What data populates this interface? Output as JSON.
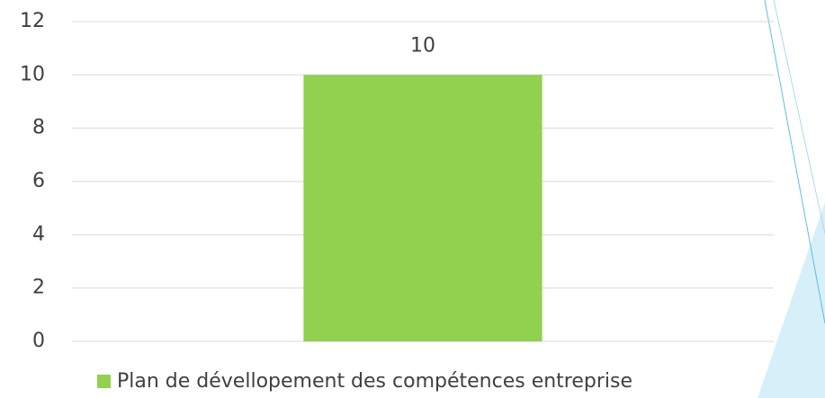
{
  "chart_data": {
    "type": "bar",
    "categories": [
      null
    ],
    "series": [
      {
        "name": "Plan de dévellopement des compétences entreprise",
        "color": "#92d050",
        "values": [
          10
        ]
      }
    ],
    "ylim": [
      0,
      12
    ],
    "yticks": [
      0,
      2,
      4,
      6,
      8,
      10,
      12
    ],
    "grid": true,
    "legend": "bottom"
  }
}
